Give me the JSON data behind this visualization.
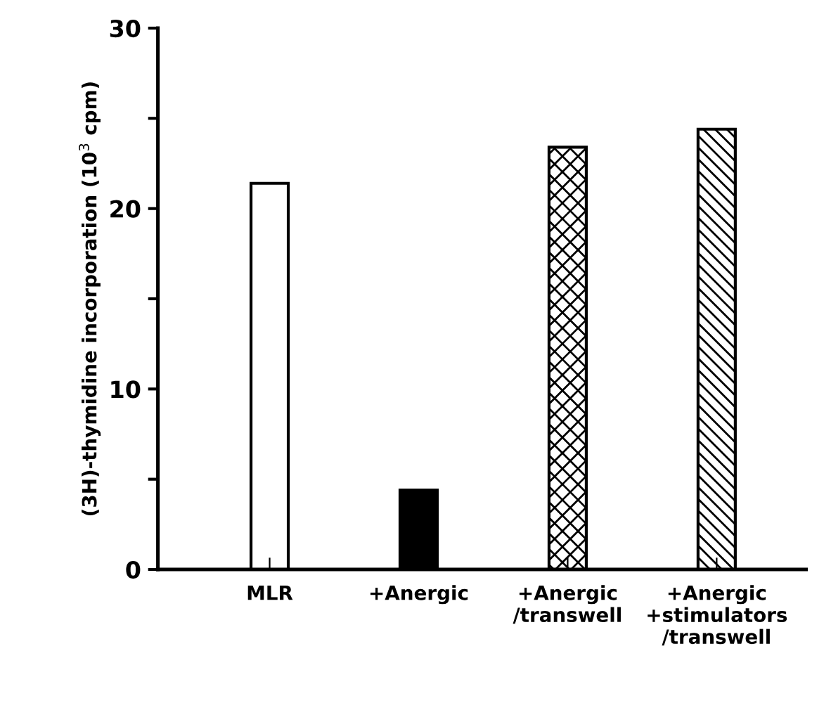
{
  "chart_data": {
    "type": "bar",
    "categories": [
      "MLR",
      "+Anergic",
      "+Anergic\n/transwell",
      "+Anergic\n+stimulators\n/transwell"
    ],
    "values": [
      21.4,
      4.4,
      23.4,
      24.4
    ],
    "colors": [
      "#ffffff",
      "#000000",
      "#000000",
      "#000000"
    ],
    "ylabel": "(3H)-thymidine incorporation (10$^{3}$ cpm)",
    "ylim": [
      0,
      30
    ],
    "yticks": [
      0,
      {
        "value": 5,
        "label": null
      },
      10,
      {
        "value": 15,
        "label": null
      },
      20,
      {
        "value": 25,
        "label": null
      },
      30
    ],
    "grid": false
  }
}
